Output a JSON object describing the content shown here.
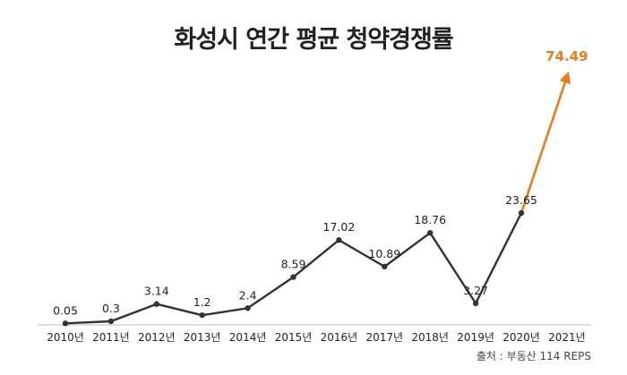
{
  "chart_data": {
    "type": "line",
    "title": "화성시 연간 평균 청약경쟁률",
    "source": "출처 : 부동산 114 REPS",
    "categories": [
      "2010년",
      "2011년",
      "2012년",
      "2013년",
      "2014년",
      "2015년",
      "2016년",
      "2017년",
      "2018년",
      "2019년",
      "2020년",
      "2021년"
    ],
    "values": [
      0.05,
      0.3,
      3.14,
      1.2,
      2.4,
      8.59,
      17.02,
      10.89,
      18.76,
      3.27,
      23.65,
      74.49
    ],
    "value_labels": [
      "0.05",
      "0.3",
      "3.14",
      "1.2",
      "2.4",
      "8.59",
      "17.02",
      "10.89",
      "18.76",
      "3.27",
      "23.65",
      "74.49"
    ],
    "highlight": {
      "from_index": 10,
      "to_index": 11,
      "color": "#e87c1e",
      "arrow": true
    },
    "line_color": "#333333",
    "axis_color": "#bbbbbb",
    "grid": false,
    "legend": "none"
  }
}
